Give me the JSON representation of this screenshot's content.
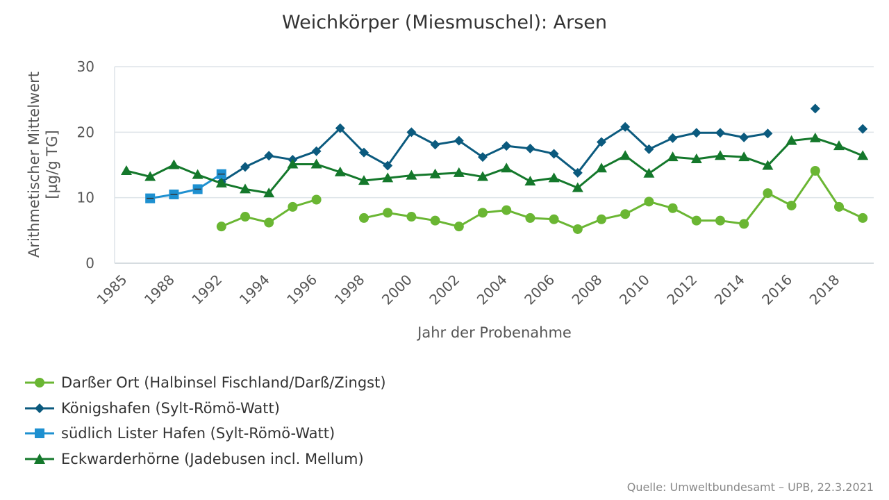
{
  "source": "Quelle: Umweltbundesamt – UPB, 22.3.2021",
  "chart_data": {
    "type": "line",
    "title": "Weichkörper (Miesmuschel): Arsen",
    "xlabel": "Jahr der Probenahme",
    "ylabel_lines": [
      "Arithmetischer Mittelwert",
      "[µg/g TG]"
    ],
    "ylim": [
      0,
      30
    ],
    "yticks": [
      0,
      10,
      20,
      30
    ],
    "x": [
      "1985",
      "1986",
      "1988",
      "1991",
      "1992",
      "1993",
      "1994",
      "1995",
      "1996",
      "1997",
      "1998",
      "1999",
      "2000",
      "2001",
      "2002",
      "2003",
      "2004",
      "2005",
      "2006",
      "2007",
      "2008",
      "2009",
      "2010",
      "2011",
      "2012",
      "2013",
      "2014",
      "2015",
      "2016",
      "2017",
      "2018",
      "2019"
    ],
    "xtick_labels": [
      "1985",
      "",
      "1988",
      "",
      "1992",
      "",
      "1994",
      "",
      "1996",
      "",
      "1998",
      "",
      "2000",
      "",
      "2002",
      "",
      "2004",
      "",
      "2006",
      "",
      "2008",
      "",
      "2010",
      "",
      "2012",
      "",
      "2014",
      "",
      "2016",
      "",
      "2018",
      ""
    ],
    "grid": "horizontal",
    "legend_position": "bottom-left",
    "series": [
      {
        "name": "Darßer Ort (Halbinsel Fischland/Darß/Zingst)",
        "marker": "circle",
        "color": "#6ab633",
        "values": [
          null,
          null,
          null,
          null,
          5.6,
          7.1,
          6.2,
          8.6,
          9.7,
          null,
          6.9,
          7.7,
          7.1,
          6.5,
          5.6,
          7.7,
          8.1,
          6.9,
          6.7,
          5.2,
          6.7,
          7.5,
          9.4,
          8.4,
          6.5,
          6.5,
          6.0,
          10.7,
          8.8,
          14.1,
          8.6,
          6.9
        ]
      },
      {
        "name": "Königshafen (Sylt-Römö-Watt)",
        "marker": "diamond",
        "color": "#0b5a7e",
        "values": [
          null,
          null,
          null,
          null,
          12.4,
          14.7,
          16.4,
          15.8,
          17.1,
          20.6,
          16.9,
          14.9,
          20.0,
          18.1,
          18.7,
          16.2,
          17.9,
          17.5,
          16.7,
          13.8,
          18.5,
          20.8,
          17.4,
          19.1,
          19.9,
          19.9,
          19.2,
          19.8,
          null,
          23.6,
          null,
          20.5
        ]
      },
      {
        "name": "südlich Lister Hafen (Sylt-Römö-Watt)",
        "marker": "square",
        "color": "#1e90d0",
        "values": [
          null,
          9.9,
          10.5,
          11.3,
          13.6,
          null,
          null,
          null,
          null,
          null,
          null,
          null,
          null,
          null,
          null,
          null,
          null,
          null,
          null,
          null,
          null,
          null,
          null,
          null,
          null,
          null,
          null,
          null,
          null,
          null,
          null,
          null
        ]
      },
      {
        "name": "Eckwarderhörne (Jadebusen incl. Mellum)",
        "marker": "triangle",
        "color": "#14782b",
        "values": [
          14.1,
          13.2,
          15.0,
          13.5,
          12.2,
          11.3,
          10.7,
          15.1,
          15.1,
          13.9,
          12.6,
          13.0,
          13.4,
          13.6,
          13.8,
          13.2,
          14.5,
          12.5,
          13.0,
          11.5,
          14.5,
          16.4,
          13.7,
          16.2,
          15.9,
          16.4,
          16.2,
          14.9,
          18.7,
          19.1,
          17.9,
          16.4
        ]
      }
    ]
  }
}
